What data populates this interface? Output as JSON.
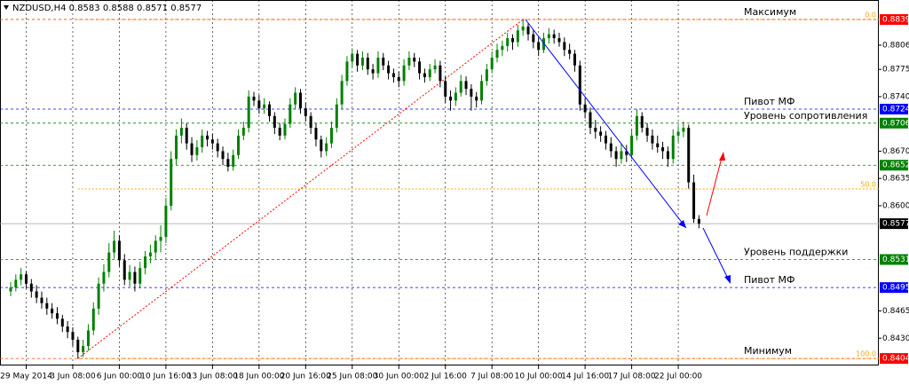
{
  "chart_data": {
    "type": "candlestick",
    "title": "NZDUSD,H4",
    "categories": [
      null,
      null,
      null,
      "29 May 2014",
      null,
      null,
      null,
      null,
      null,
      null,
      null,
      null,
      "3 Jun 08:00",
      null,
      null,
      null,
      null,
      null,
      null,
      null,
      null,
      "6 Jun 00:00",
      null,
      null,
      null,
      null,
      null,
      null,
      null,
      null,
      "10 Jun 16:00",
      null,
      null,
      null,
      null,
      null,
      null,
      null,
      null,
      "13 Jun 08:00",
      null,
      null,
      null,
      null,
      null,
      null,
      null,
      null,
      "18 Jun 00:00",
      null,
      null,
      null,
      null,
      null,
      null,
      null,
      null,
      "20 Jun 16:00",
      null,
      null,
      null,
      null,
      null,
      null,
      null,
      null,
      "25 Jun 08:00",
      null,
      null,
      null,
      null,
      null,
      null,
      null,
      null,
      "30 Jun 00:00",
      null,
      null,
      null,
      null,
      null,
      null,
      null,
      null,
      "2 Jul 16:00",
      null,
      null,
      null,
      null,
      null,
      null,
      null,
      null,
      "7 Jul 08:00",
      null,
      null,
      null,
      null,
      null,
      null,
      null,
      null,
      "10 Jul 00:00",
      null,
      null,
      null,
      null,
      null,
      null,
      null,
      null,
      "14 Jul 16:00",
      null,
      null,
      null,
      null,
      null,
      null,
      null,
      null,
      "17 Jul 08:00",
      null,
      null,
      null,
      null,
      null,
      null,
      null,
      null,
      "22 Jul 00:00",
      null,
      null,
      null,
      null
    ],
    "ohlc": [
      [
        0.849,
        0.8502,
        0.8484,
        0.8495
      ],
      [
        0.8495,
        0.8512,
        0.849,
        0.8505
      ],
      [
        0.8505,
        0.852,
        0.8498,
        0.8512
      ],
      [
        0.8512,
        0.8516,
        0.8494,
        0.85
      ],
      [
        0.85,
        0.8506,
        0.8482,
        0.849
      ],
      [
        0.849,
        0.8498,
        0.8475,
        0.8482
      ],
      [
        0.8482,
        0.849,
        0.8468,
        0.8475
      ],
      [
        0.8475,
        0.8482,
        0.846,
        0.8468
      ],
      [
        0.8468,
        0.8475,
        0.8455,
        0.8462
      ],
      [
        0.8462,
        0.847,
        0.8448,
        0.8455
      ],
      [
        0.8455,
        0.846,
        0.8438,
        0.8445
      ],
      [
        0.8445,
        0.8452,
        0.843,
        0.8438
      ],
      [
        0.8438,
        0.8444,
        0.842,
        0.8428
      ],
      [
        0.8428,
        0.8432,
        0.8404,
        0.8412
      ],
      [
        0.8412,
        0.8428,
        0.8406,
        0.842
      ],
      [
        0.842,
        0.8448,
        0.8414,
        0.844
      ],
      [
        0.844,
        0.8476,
        0.8434,
        0.8468
      ],
      [
        0.8468,
        0.8508,
        0.846,
        0.85
      ],
      [
        0.85,
        0.8525,
        0.849,
        0.8515
      ],
      [
        0.8515,
        0.8552,
        0.8508,
        0.854
      ],
      [
        0.854,
        0.8568,
        0.8532,
        0.8555
      ],
      [
        0.8555,
        0.8562,
        0.8522,
        0.853
      ],
      [
        0.853,
        0.8538,
        0.8498,
        0.8505
      ],
      [
        0.8505,
        0.8524,
        0.8496,
        0.8515
      ],
      [
        0.8515,
        0.8522,
        0.849,
        0.85
      ],
      [
        0.85,
        0.8528,
        0.8494,
        0.852
      ],
      [
        0.852,
        0.8542,
        0.8512,
        0.8535
      ],
      [
        0.8535,
        0.855,
        0.8526,
        0.854
      ],
      [
        0.854,
        0.8562,
        0.8532,
        0.8555
      ],
      [
        0.8555,
        0.8575,
        0.854,
        0.856
      ],
      [
        0.856,
        0.861,
        0.8552,
        0.86
      ],
      [
        0.86,
        0.867,
        0.8594,
        0.866
      ],
      [
        0.866,
        0.8698,
        0.8652,
        0.869
      ],
      [
        0.869,
        0.8712,
        0.868,
        0.87
      ],
      [
        0.87,
        0.8706,
        0.8672,
        0.868
      ],
      [
        0.868,
        0.8688,
        0.8656,
        0.8665
      ],
      [
        0.8665,
        0.8684,
        0.8658,
        0.8675
      ],
      [
        0.8675,
        0.8698,
        0.8668,
        0.869
      ],
      [
        0.869,
        0.8696,
        0.8676,
        0.8685
      ],
      [
        0.8685,
        0.8692,
        0.8672,
        0.868
      ],
      [
        0.868,
        0.8686,
        0.8662,
        0.867
      ],
      [
        0.867,
        0.8676,
        0.8652,
        0.866
      ],
      [
        0.866,
        0.8668,
        0.8644,
        0.865
      ],
      [
        0.865,
        0.8672,
        0.8645,
        0.8665
      ],
      [
        0.8665,
        0.8698,
        0.866,
        0.869
      ],
      [
        0.869,
        0.8708,
        0.8684,
        0.87
      ],
      [
        0.87,
        0.8748,
        0.8694,
        0.874
      ],
      [
        0.874,
        0.8746,
        0.8728,
        0.8735
      ],
      [
        0.8735,
        0.8742,
        0.8718,
        0.8725
      ],
      [
        0.8725,
        0.8738,
        0.8718,
        0.873
      ],
      [
        0.873,
        0.8734,
        0.8708,
        0.8715
      ],
      [
        0.8715,
        0.872,
        0.8692,
        0.87
      ],
      [
        0.87,
        0.8706,
        0.8684,
        0.869
      ],
      [
        0.869,
        0.8712,
        0.8685,
        0.8705
      ],
      [
        0.8705,
        0.8738,
        0.87,
        0.873
      ],
      [
        0.873,
        0.8752,
        0.8724,
        0.8745
      ],
      [
        0.8745,
        0.875,
        0.8718,
        0.8725
      ],
      [
        0.8725,
        0.8732,
        0.8708,
        0.8715
      ],
      [
        0.8715,
        0.872,
        0.8692,
        0.87
      ],
      [
        0.87,
        0.8706,
        0.8676,
        0.8685
      ],
      [
        0.8685,
        0.869,
        0.8662,
        0.867
      ],
      [
        0.867,
        0.8688,
        0.8664,
        0.868
      ],
      [
        0.868,
        0.8708,
        0.8674,
        0.87
      ],
      [
        0.87,
        0.8738,
        0.8694,
        0.873
      ],
      [
        0.873,
        0.8768,
        0.8724,
        0.876
      ],
      [
        0.876,
        0.8792,
        0.8754,
        0.8785
      ],
      [
        0.8785,
        0.8802,
        0.8778,
        0.8795
      ],
      [
        0.8795,
        0.88,
        0.8772,
        0.878
      ],
      [
        0.878,
        0.8798,
        0.8774,
        0.879
      ],
      [
        0.879,
        0.8796,
        0.8768,
        0.8775
      ],
      [
        0.8775,
        0.8782,
        0.8762,
        0.877
      ],
      [
        0.877,
        0.8798,
        0.8764,
        0.879
      ],
      [
        0.879,
        0.8796,
        0.8774,
        0.878
      ],
      [
        0.878,
        0.8786,
        0.8762,
        0.877
      ],
      [
        0.877,
        0.8776,
        0.8758,
        0.8765
      ],
      [
        0.8765,
        0.8772,
        0.8752,
        0.876
      ],
      [
        0.876,
        0.8788,
        0.8754,
        0.878
      ],
      [
        0.878,
        0.8798,
        0.8774,
        0.879
      ],
      [
        0.879,
        0.8796,
        0.8778,
        0.8785
      ],
      [
        0.8785,
        0.879,
        0.8762,
        0.877
      ],
      [
        0.877,
        0.8776,
        0.8758,
        0.8765
      ],
      [
        0.8765,
        0.8782,
        0.876,
        0.8775
      ],
      [
        0.8775,
        0.8788,
        0.877,
        0.878
      ],
      [
        0.878,
        0.8786,
        0.8752,
        0.876
      ],
      [
        0.876,
        0.8766,
        0.8732,
        0.874
      ],
      [
        0.874,
        0.8748,
        0.8722,
        0.8735
      ],
      [
        0.8735,
        0.8752,
        0.8728,
        0.8745
      ],
      [
        0.8745,
        0.8768,
        0.874,
        0.876
      ],
      [
        0.876,
        0.8766,
        0.8742,
        0.875
      ],
      [
        0.875,
        0.8756,
        0.8722,
        0.874
      ],
      [
        0.874,
        0.8746,
        0.8726,
        0.8735
      ],
      [
        0.8735,
        0.8768,
        0.873,
        0.876
      ],
      [
        0.876,
        0.8782,
        0.8754,
        0.8775
      ],
      [
        0.8775,
        0.8798,
        0.877,
        0.879
      ],
      [
        0.879,
        0.8808,
        0.8784,
        0.88
      ],
      [
        0.88,
        0.8812,
        0.8792,
        0.8805
      ],
      [
        0.8805,
        0.8822,
        0.8798,
        0.8815
      ],
      [
        0.8815,
        0.882,
        0.88,
        0.881
      ],
      [
        0.881,
        0.8832,
        0.8804,
        0.8825
      ],
      [
        0.8825,
        0.8839,
        0.8818,
        0.883
      ],
      [
        0.883,
        0.8834,
        0.8812,
        0.882
      ],
      [
        0.882,
        0.8826,
        0.8802,
        0.881
      ],
      [
        0.881,
        0.8816,
        0.8792,
        0.88
      ],
      [
        0.88,
        0.8822,
        0.8796,
        0.8815
      ],
      [
        0.8815,
        0.8828,
        0.8808,
        0.882
      ],
      [
        0.882,
        0.8826,
        0.8808,
        0.8815
      ],
      [
        0.8815,
        0.8822,
        0.8804,
        0.881
      ],
      [
        0.881,
        0.8816,
        0.8792,
        0.88
      ],
      [
        0.88,
        0.8808,
        0.8788,
        0.8795
      ],
      [
        0.8795,
        0.88,
        0.8772,
        0.878
      ],
      [
        0.878,
        0.8786,
        0.8722,
        0.873
      ],
      [
        0.873,
        0.8738,
        0.8712,
        0.872
      ],
      [
        0.872,
        0.8726,
        0.8692,
        0.87
      ],
      [
        0.87,
        0.871,
        0.8686,
        0.8695
      ],
      [
        0.8695,
        0.8702,
        0.8682,
        0.869
      ],
      [
        0.869,
        0.8696,
        0.8672,
        0.868
      ],
      [
        0.868,
        0.8688,
        0.8662,
        0.867
      ],
      [
        0.867,
        0.8676,
        0.865,
        0.866
      ],
      [
        0.866,
        0.868,
        0.8654,
        0.867
      ],
      [
        0.867,
        0.8678,
        0.8656,
        0.8665
      ],
      [
        0.8665,
        0.8698,
        0.866,
        0.869
      ],
      [
        0.869,
        0.8724,
        0.8684,
        0.8715
      ],
      [
        0.8715,
        0.872,
        0.8694,
        0.87
      ],
      [
        0.87,
        0.8706,
        0.8682,
        0.869
      ],
      [
        0.869,
        0.8698,
        0.8672,
        0.868
      ],
      [
        0.868,
        0.869,
        0.8668,
        0.8675
      ],
      [
        0.8675,
        0.8682,
        0.866,
        0.867
      ],
      [
        0.867,
        0.8676,
        0.865,
        0.866
      ],
      [
        0.866,
        0.8698,
        0.8654,
        0.869
      ],
      [
        0.869,
        0.8702,
        0.8682,
        0.8695
      ],
      [
        0.8695,
        0.8708,
        0.8688,
        0.87
      ],
      [
        0.87,
        0.8704,
        0.8622,
        0.863
      ],
      [
        0.863,
        0.864,
        0.8578,
        0.8583
      ],
      [
        0.8583,
        0.8588,
        0.8571,
        0.8577
      ]
    ],
    "up_color": "#008000",
    "down_color": "#000000",
    "ylim": [
      0.8395,
      0.8864
    ],
    "yticks": [
      0.8806,
      0.8775,
      {
        "value": 0.874,
        "label": "0.8740"
      },
      {
        "value": 0.867,
        "label": "0.8670"
      },
      0.8635,
      {
        "value": 0.86,
        "label": "0.8600"
      },
      0.8465,
      {
        "value": 0.843,
        "label": "0.8430"
      }
    ],
    "levels": [
      {
        "value": 0.8839,
        "color": "#ff4500",
        "box": "#ff0000",
        "text": "Максимум"
      },
      {
        "value": 0.8724,
        "color": "#0000ff",
        "box": "#0000ff",
        "text": "Пивот МФ"
      },
      {
        "value": 0.8706,
        "color": "#008000",
        "box": "#008000",
        "text": "Уровень сопротивления"
      },
      {
        "value": 0.8652,
        "color": "#008000",
        "box": "#008000"
      },
      {
        "value": 0.8577,
        "color": "#a0a0a0",
        "box": "#000000"
      },
      {
        "value": 0.8531,
        "color": "#008000",
        "box": "#008000",
        "text": "Уровень поддержки"
      },
      {
        "value": 0.8495,
        "color": "#0000ff",
        "box": "#0000ff",
        "text": "Пивот МФ"
      },
      {
        "value": 0.8404,
        "color": "#ff4500",
        "box": "#ff0000",
        "text": "Минимум"
      }
    ],
    "fibo": {
      "high": 0.8839,
      "low": 0.8404,
      "color": "#ffa500",
      "levels": [
        {
          "value": 0,
          "label": "0.0"
        },
        {
          "value": 50,
          "label": "50.0"
        },
        {
          "value": 100,
          "label": "100.0"
        }
      ]
    }
  }
}
